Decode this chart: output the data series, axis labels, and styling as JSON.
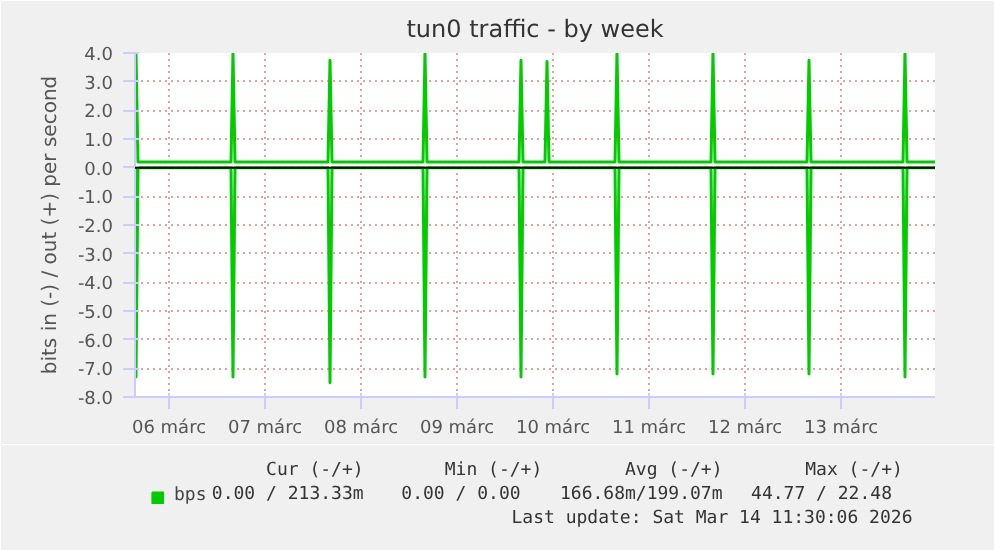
{
  "chart_data": {
    "type": "line",
    "title": "tun0 traffic - by week",
    "ylabel": "bits in (-) / out (+) per second",
    "xlim": [
      "2026-03-06T03:30",
      "2026-03-14T11:30"
    ],
    "xticks": [
      {
        "value": "2026-03-06T12:00",
        "label": "06 márc"
      },
      {
        "value": "2026-03-07T12:00",
        "label": "07 márc"
      },
      {
        "value": "2026-03-08T12:00",
        "label": "08 márc"
      },
      {
        "value": "2026-03-09T12:00",
        "label": "09 márc"
      },
      {
        "value": "2026-03-10T12:00",
        "label": "10 márc"
      },
      {
        "value": "2026-03-11T12:00",
        "label": "11 márc"
      },
      {
        "value": "2026-03-12T12:00",
        "label": "12 márc"
      },
      {
        "value": "2026-03-13T12:00",
        "label": "13 márc"
      }
    ],
    "ylim": [
      -8,
      4
    ],
    "yticks": [
      {
        "value": 4,
        "label": "4.0"
      },
      {
        "value": 3,
        "label": "3.0"
      },
      {
        "value": 2,
        "label": "2.0"
      },
      {
        "value": 1,
        "label": "1.0"
      },
      {
        "value": 0,
        "label": "0.0"
      },
      {
        "value": -1,
        "label": "-1.0"
      },
      {
        "value": -2,
        "label": "-2.0"
      },
      {
        "value": -3,
        "label": "-3.0"
      },
      {
        "value": -4,
        "label": "-4.0"
      },
      {
        "value": -5,
        "label": "-5.0"
      },
      {
        "value": -6,
        "label": "-6.0"
      },
      {
        "value": -7,
        "label": "-7.0"
      },
      {
        "value": -8,
        "label": "-8.0"
      }
    ],
    "grid": true,
    "legend": "bottom",
    "line_style": "solid",
    "marker": "none",
    "ref_lines": [
      {
        "axis": "y",
        "value": 0,
        "color": "#000000"
      }
    ],
    "series": [
      {
        "name": "bps",
        "color": "#00cc00",
        "x": [
          "2026-03-06T03:30",
          "2026-03-06T03:45",
          "2026-03-06T04:15",
          "2026-03-07T03:30",
          "2026-03-07T04:00",
          "2026-03-07T04:30",
          "2026-03-08T03:45",
          "2026-03-08T04:15",
          "2026-03-08T04:45",
          "2026-03-09T03:30",
          "2026-03-09T04:00",
          "2026-03-09T04:30",
          "2026-03-10T03:30",
          "2026-03-10T04:00",
          "2026-03-10T04:30",
          "2026-03-10T10:00",
          "2026-03-10T10:30",
          "2026-03-10T11:00",
          "2026-03-11T03:30",
          "2026-03-11T04:00",
          "2026-03-11T04:30",
          "2026-03-12T03:30",
          "2026-03-12T04:00",
          "2026-03-12T04:30",
          "2026-03-13T03:30",
          "2026-03-13T04:00",
          "2026-03-13T04:30",
          "2026-03-14T03:30",
          "2026-03-14T04:00",
          "2026-03-14T04:30",
          "2026-03-14T11:30"
        ],
        "values": [
          4.0,
          4.0,
          0.2,
          0.2,
          4.0,
          0.2,
          0.2,
          3.75,
          0.2,
          0.2,
          4.0,
          0.2,
          0.2,
          3.75,
          0.2,
          0.2,
          3.7,
          0.2,
          0.2,
          4.0,
          0.2,
          0.2,
          4.0,
          0.2,
          0.2,
          3.75,
          0.2,
          0.2,
          4.0,
          0.2,
          0.2
        ]
      },
      {
        "color": "#00cc00",
        "x": [
          "2026-03-06T03:30",
          "2026-03-06T03:45",
          "2026-03-06T04:15",
          "2026-03-07T03:30",
          "2026-03-07T04:00",
          "2026-03-07T04:30",
          "2026-03-08T03:45",
          "2026-03-08T04:15",
          "2026-03-08T04:45",
          "2026-03-09T03:30",
          "2026-03-09T04:00",
          "2026-03-09T04:30",
          "2026-03-10T03:30",
          "2026-03-10T04:00",
          "2026-03-10T04:30",
          "2026-03-11T03:30",
          "2026-03-11T04:00",
          "2026-03-11T04:30",
          "2026-03-12T03:30",
          "2026-03-12T04:00",
          "2026-03-12T04:30",
          "2026-03-13T03:30",
          "2026-03-13T04:00",
          "2026-03-13T04:30",
          "2026-03-14T03:30",
          "2026-03-14T04:00",
          "2026-03-14T04:30",
          "2026-03-14T11:30"
        ],
        "values": [
          0,
          -7.3,
          0,
          0,
          -7.3,
          0,
          0,
          -7.5,
          0,
          0,
          -7.3,
          0,
          0,
          -7.3,
          0,
          0,
          -7.2,
          0,
          0,
          -7.2,
          0,
          0,
          -7.2,
          0,
          0,
          -7.3,
          0,
          0
        ]
      }
    ],
    "annotations": [
      "Cur (-/+)",
      "Min (-/+)",
      "Avg (-/+)",
      "Max (-/+)",
      "0.00 / 213.33m",
      "0.00 /   0.00",
      "166.68m/199.07m",
      "44.77 /  22.48",
      "Last update: Sat Mar 14 11:30:06 2026"
    ]
  }
}
